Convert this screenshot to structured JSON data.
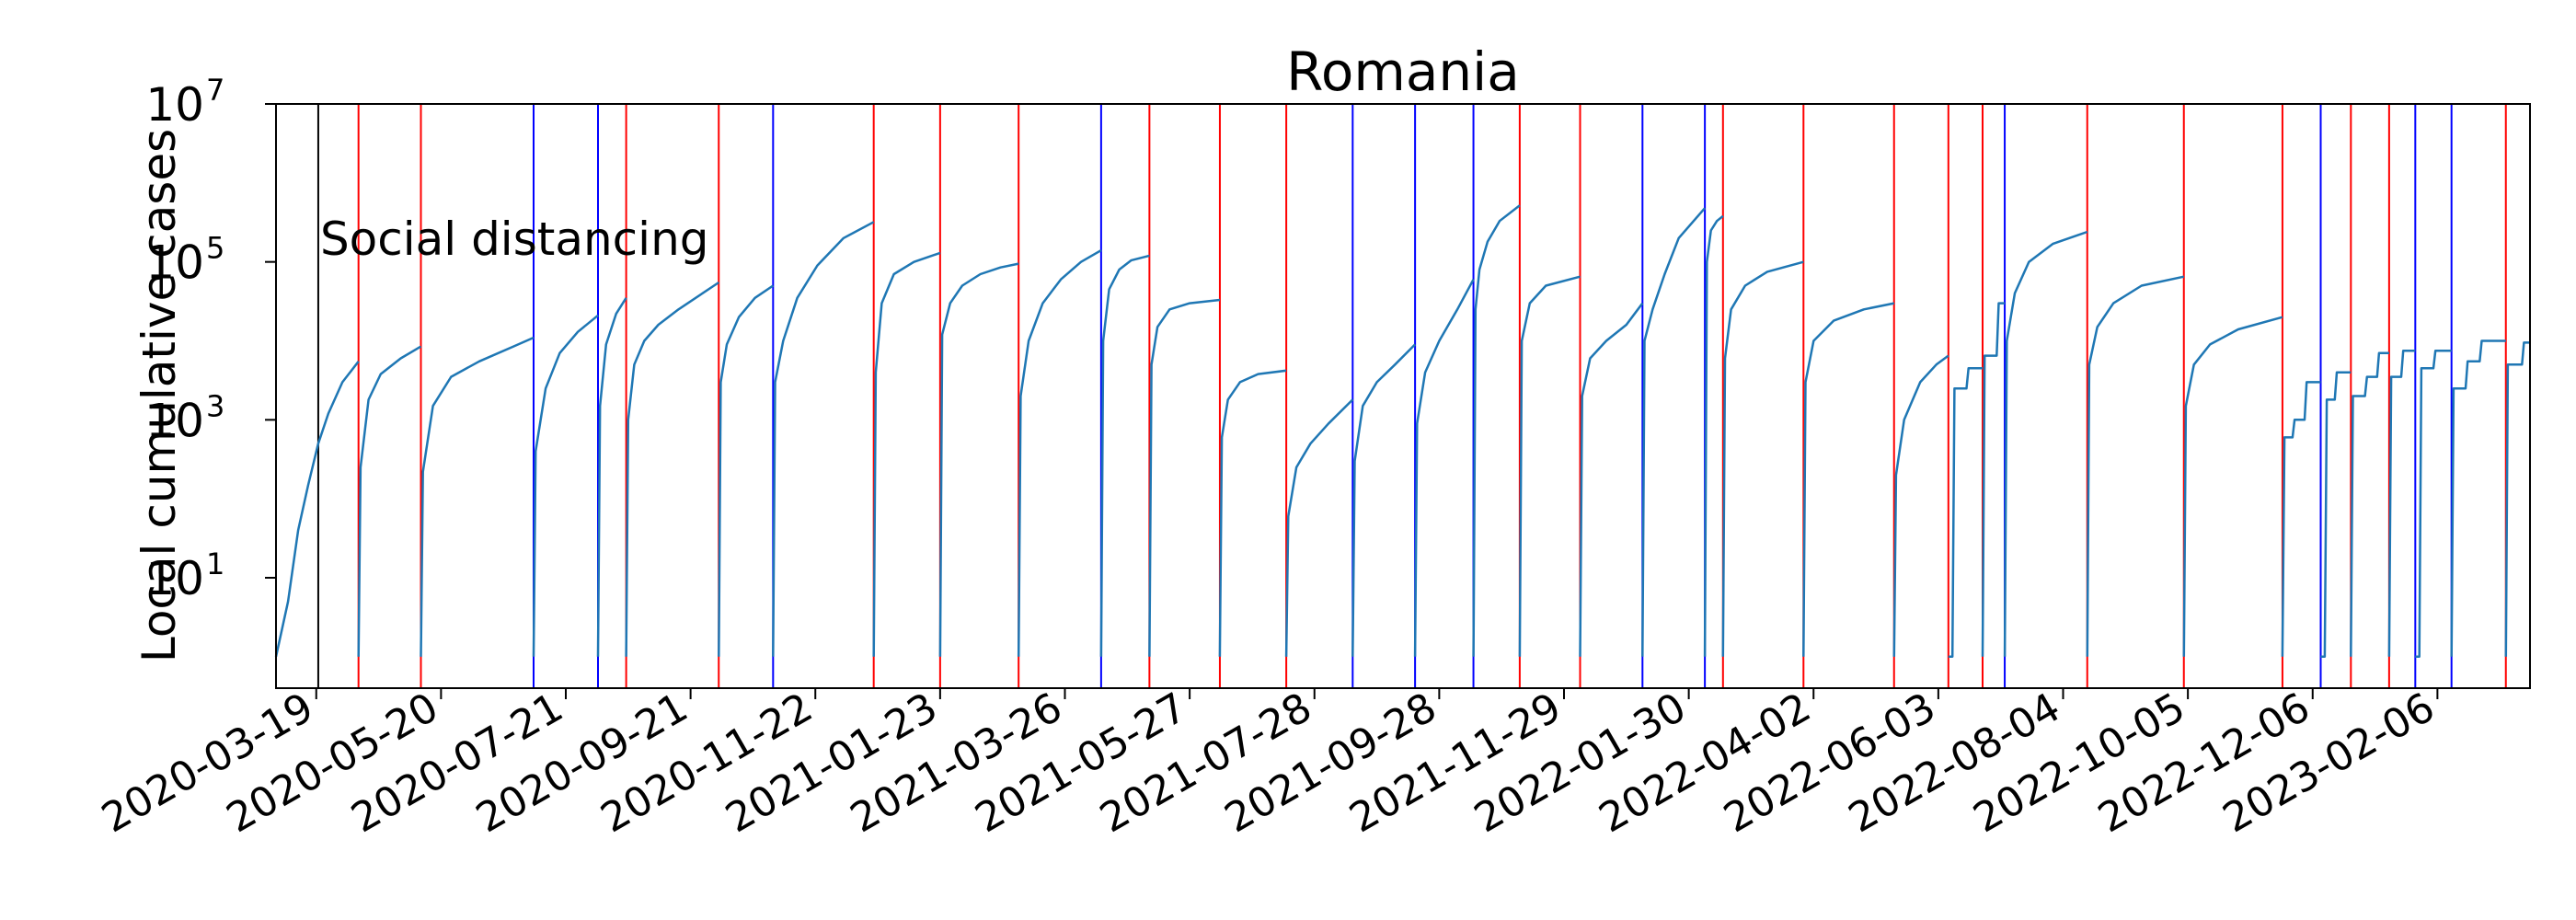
{
  "chart_data": {
    "type": "line",
    "title": "Romania",
    "xlabel": "",
    "ylabel": "Local cumulative cases",
    "yscale": "log",
    "ylim": [
      0.4,
      10000000
    ],
    "xlim": [
      "2020-02-28",
      "2023-03-24"
    ],
    "grid": false,
    "legend": "none",
    "y_ticks": [
      {
        "base": "10",
        "exp": "1",
        "value": 10
      },
      {
        "base": "10",
        "exp": "3",
        "value": 1000
      },
      {
        "base": "10",
        "exp": "5",
        "value": 100000
      },
      {
        "base": "10",
        "exp": "7",
        "value": 10000000
      }
    ],
    "x_ticks": [
      "2020-03-19",
      "2020-05-20",
      "2020-07-21",
      "2020-09-21",
      "2020-11-22",
      "2021-01-23",
      "2021-03-26",
      "2021-05-27",
      "2021-07-28",
      "2021-09-28",
      "2021-11-29",
      "2022-01-30",
      "2022-04-02",
      "2022-06-03",
      "2022-08-04",
      "2022-10-05",
      "2022-12-06",
      "2023-02-06"
    ],
    "annotation": {
      "text": "Social distancing",
      "date": "2020-03-20"
    },
    "colors": {
      "series": "#1f77b4",
      "red_marker": "#ff0000",
      "blue_marker": "#0000ff",
      "black_marker": "#000000"
    },
    "black_markers": [
      "2020-03-20",
      "2023-03-24"
    ],
    "red_markers": [
      "2020-04-09",
      "2020-05-10",
      "2020-08-20",
      "2020-10-05",
      "2020-12-21",
      "2021-01-23",
      "2021-03-03",
      "2021-05-07",
      "2021-06-11",
      "2021-07-14",
      "2021-11-07",
      "2021-12-07",
      "2022-02-16",
      "2022-03-28",
      "2022-05-12",
      "2022-06-08",
      "2022-06-25",
      "2022-08-16",
      "2022-10-03",
      "2022-11-21",
      "2022-12-25",
      "2023-01-13",
      "2023-03-12"
    ],
    "blue_markers": [
      "2020-07-05",
      "2020-08-06",
      "2020-11-01",
      "2021-04-13",
      "2021-08-16",
      "2021-09-16",
      "2021-10-15",
      "2022-01-07",
      "2022-02-07",
      "2022-07-06",
      "2022-12-10",
      "2023-01-26",
      "2023-02-13"
    ],
    "series": [
      {
        "segments": [
          {
            "x": [
              "2020-02-28",
              "2020-03-05",
              "2020-03-10",
              "2020-03-15",
              "2020-03-20",
              "2020-03-25",
              "2020-04-01",
              "2020-04-09"
            ],
            "y": [
              1,
              5,
              40,
              150,
              500,
              1200,
              3000,
              5500
            ]
          },
          {
            "x": [
              "2020-04-09",
              "2020-04-10",
              "2020-04-14",
              "2020-04-20",
              "2020-04-30",
              "2020-05-10"
            ],
            "y": [
              1,
              250,
              1800,
              3800,
              6000,
              8500
            ]
          },
          {
            "x": [
              "2020-05-10",
              "2020-05-11",
              "2020-05-16",
              "2020-05-25",
              "2020-06-08",
              "2020-06-25",
              "2020-07-05"
            ],
            "y": [
              1,
              220,
              1500,
              3500,
              5500,
              8500,
              11000
            ]
          },
          {
            "x": [
              "2020-07-05",
              "2020-07-06",
              "2020-07-11",
              "2020-07-18",
              "2020-07-27",
              "2020-08-06"
            ],
            "y": [
              1,
              400,
              2500,
              7000,
              13000,
              21000
            ]
          },
          {
            "x": [
              "2020-08-06",
              "2020-08-07",
              "2020-08-10",
              "2020-08-15",
              "2020-08-20"
            ],
            "y": [
              1,
              1500,
              9000,
              22000,
              35000
            ]
          },
          {
            "x": [
              "2020-08-20",
              "2020-08-21",
              "2020-08-24",
              "2020-08-29",
              "2020-09-05",
              "2020-09-15",
              "2020-10-05"
            ],
            "y": [
              1,
              1000,
              5000,
              10000,
              16000,
              25000,
              55000
            ]
          },
          {
            "x": [
              "2020-10-05",
              "2020-10-06",
              "2020-10-09",
              "2020-10-15",
              "2020-10-23",
              "2020-11-01"
            ],
            "y": [
              1,
              3000,
              9000,
              20000,
              35000,
              50000
            ]
          },
          {
            "x": [
              "2020-11-01",
              "2020-11-02",
              "2020-11-06",
              "2020-11-13",
              "2020-11-23",
              "2020-12-06",
              "2020-12-21"
            ],
            "y": [
              1,
              3000,
              10000,
              35000,
              90000,
              200000,
              320000
            ]
          },
          {
            "x": [
              "2020-12-21",
              "2020-12-22",
              "2020-12-25",
              "2020-12-31",
              "2021-01-10",
              "2021-01-23"
            ],
            "y": [
              1,
              4000,
              30000,
              70000,
              100000,
              130000
            ]
          },
          {
            "x": [
              "2021-01-23",
              "2021-01-24",
              "2021-01-28",
              "2021-02-03",
              "2021-02-12",
              "2021-02-22",
              "2021-03-03"
            ],
            "y": [
              1,
              12000,
              30000,
              50000,
              70000,
              85000,
              95000
            ]
          },
          {
            "x": [
              "2021-03-03",
              "2021-03-04",
              "2021-03-08",
              "2021-03-15",
              "2021-03-24",
              "2021-04-03",
              "2021-04-13"
            ],
            "y": [
              1,
              2000,
              10000,
              30000,
              60000,
              100000,
              140000
            ]
          },
          {
            "x": [
              "2021-04-13",
              "2021-04-14",
              "2021-04-17",
              "2021-04-22",
              "2021-04-28",
              "2021-05-07"
            ],
            "y": [
              1,
              10000,
              45000,
              80000,
              105000,
              120000
            ]
          },
          {
            "x": [
              "2021-05-07",
              "2021-05-08",
              "2021-05-11",
              "2021-05-17",
              "2021-05-27",
              "2021-06-11"
            ],
            "y": [
              1,
              5000,
              15000,
              25000,
              30000,
              33000
            ]
          },
          {
            "x": [
              "2021-06-11",
              "2021-06-12",
              "2021-06-15",
              "2021-06-21",
              "2021-06-30",
              "2021-07-14"
            ],
            "y": [
              1,
              600,
              1800,
              3000,
              3800,
              4200
            ]
          },
          {
            "x": [
              "2021-07-14",
              "2021-07-15",
              "2021-07-19",
              "2021-07-26",
              "2021-08-04",
              "2021-08-16"
            ],
            "y": [
              1,
              60,
              250,
              500,
              900,
              1800
            ]
          },
          {
            "x": [
              "2021-08-16",
              "2021-08-17",
              "2021-08-21",
              "2021-08-28",
              "2021-09-06",
              "2021-09-16"
            ],
            "y": [
              1,
              300,
              1500,
              3000,
              5000,
              9000
            ]
          },
          {
            "x": [
              "2021-09-16",
              "2021-09-17",
              "2021-09-21",
              "2021-09-28",
              "2021-10-07",
              "2021-10-15"
            ],
            "y": [
              1,
              900,
              4000,
              10000,
              25000,
              60000
            ]
          },
          {
            "x": [
              "2021-10-15",
              "2021-10-16",
              "2021-10-18",
              "2021-10-22",
              "2021-10-28",
              "2021-11-07"
            ],
            "y": [
              1,
              25000,
              80000,
              180000,
              330000,
              520000
            ]
          },
          {
            "x": [
              "2021-11-07",
              "2021-11-08",
              "2021-11-12",
              "2021-11-20",
              "2021-12-07"
            ],
            "y": [
              1,
              10000,
              30000,
              50000,
              65000
            ]
          },
          {
            "x": [
              "2021-12-07",
              "2021-12-08",
              "2021-12-12",
              "2021-12-20",
              "2021-12-30",
              "2022-01-07"
            ],
            "y": [
              1,
              2000,
              6000,
              10000,
              16000,
              30000
            ]
          },
          {
            "x": [
              "2022-01-07",
              "2022-01-08",
              "2022-01-12",
              "2022-01-18",
              "2022-01-25",
              "2022-02-07"
            ],
            "y": [
              1,
              10000,
              25000,
              70000,
              200000,
              480000
            ]
          },
          {
            "x": [
              "2022-02-07",
              "2022-02-08",
              "2022-02-10",
              "2022-02-13",
              "2022-02-16"
            ],
            "y": [
              1,
              100000,
              250000,
              330000,
              380000
            ]
          },
          {
            "x": [
              "2022-02-16",
              "2022-02-17",
              "2022-02-20",
              "2022-02-27",
              "2022-03-10",
              "2022-03-28"
            ],
            "y": [
              1,
              6000,
              25000,
              50000,
              75000,
              100000
            ]
          },
          {
            "x": [
              "2022-03-28",
              "2022-03-29",
              "2022-04-02",
              "2022-04-12",
              "2022-04-27",
              "2022-05-12"
            ],
            "y": [
              1,
              3000,
              10000,
              18000,
              25000,
              30000
            ]
          },
          {
            "x": [
              "2022-05-12",
              "2022-05-13",
              "2022-05-17",
              "2022-05-25",
              "2022-06-02",
              "2022-06-08"
            ],
            "y": [
              1,
              200,
              1000,
              3000,
              5000,
              6500
            ]
          },
          {
            "x": [
              "2022-06-08",
              "2022-06-08",
              "2022-06-10",
              "2022-06-11",
              "2022-06-17",
              "2022-06-18",
              "2022-06-25"
            ],
            "y": [
              1,
              1,
              1,
              2500,
              2500,
              4500,
              4500
            ]
          },
          {
            "x": [
              "2022-06-25",
              "2022-06-26",
              "2022-07-02",
              "2022-07-03",
              "2022-07-06"
            ],
            "y": [
              1,
              6500,
              6500,
              30000,
              30000
            ]
          },
          {
            "x": [
              "2022-07-06",
              "2022-07-07",
              "2022-07-11",
              "2022-07-18",
              "2022-07-30",
              "2022-08-16"
            ],
            "y": [
              1,
              10000,
              40000,
              100000,
              170000,
              240000
            ]
          },
          {
            "x": [
              "2022-08-16",
              "2022-08-17",
              "2022-08-21",
              "2022-08-29",
              "2022-09-12",
              "2022-10-03"
            ],
            "y": [
              1,
              5000,
              15000,
              30000,
              50000,
              65000
            ]
          },
          {
            "x": [
              "2022-10-03",
              "2022-10-04",
              "2022-10-08",
              "2022-10-16",
              "2022-10-30",
              "2022-11-21"
            ],
            "y": [
              1,
              1500,
              5000,
              9000,
              14000,
              20000
            ]
          },
          {
            "x": [
              "2022-11-21",
              "2022-11-22",
              "2022-11-26",
              "2022-11-27",
              "2022-12-02",
              "2022-12-03",
              "2022-12-10"
            ],
            "y": [
              1,
              600,
              600,
              1000,
              1000,
              3000,
              3000
            ]
          },
          {
            "x": [
              "2022-12-10",
              "2022-12-12",
              "2022-12-13",
              "2022-12-17",
              "2022-12-18",
              "2022-12-25"
            ],
            "y": [
              1,
              1,
              1800,
              1800,
              4000,
              4000
            ]
          },
          {
            "x": [
              "2022-12-25",
              "2022-12-26",
              "2023-01-01",
              "2023-01-02",
              "2023-01-07",
              "2023-01-08",
              "2023-01-13"
            ],
            "y": [
              1,
              2000,
              2000,
              3500,
              3500,
              7000,
              7000
            ]
          },
          {
            "x": [
              "2023-01-13",
              "2023-01-14",
              "2023-01-19",
              "2023-01-20",
              "2023-01-26"
            ],
            "y": [
              1,
              3500,
              3500,
              7500,
              7500
            ]
          },
          {
            "x": [
              "2023-01-26",
              "2023-01-28",
              "2023-01-29",
              "2023-02-04",
              "2023-02-05",
              "2023-02-13"
            ],
            "y": [
              1,
              1,
              4500,
              4500,
              7500,
              7500
            ]
          },
          {
            "x": [
              "2023-02-13",
              "2023-02-14",
              "2023-02-20",
              "2023-02-21",
              "2023-02-27",
              "2023-02-28",
              "2023-03-12"
            ],
            "y": [
              1,
              2500,
              2500,
              5500,
              5500,
              10000,
              10000
            ]
          },
          {
            "x": [
              "2023-03-12",
              "2023-03-13",
              "2023-03-20",
              "2023-03-21",
              "2023-03-24"
            ],
            "y": [
              1,
              5000,
              5000,
              9500,
              9500
            ]
          }
        ]
      }
    ]
  }
}
